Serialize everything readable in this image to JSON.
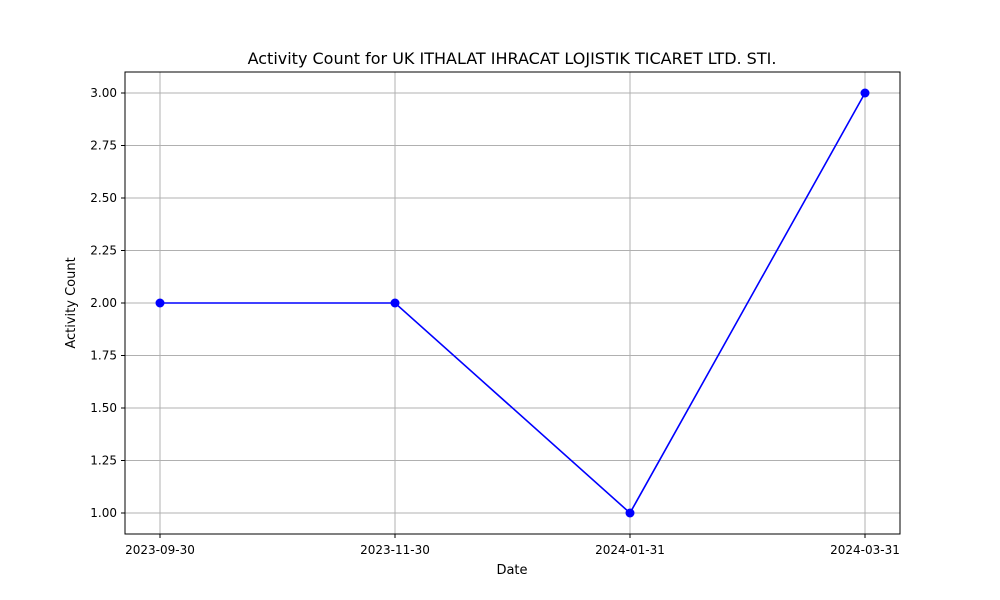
{
  "chart_data": {
    "type": "line",
    "title": "Activity Count for UK ITHALAT IHRACAT LOJISTIK TICARET LTD. STI.",
    "xlabel": "Date",
    "ylabel": "Activity Count",
    "categories": [
      "2023-09-30",
      "2023-11-30",
      "2024-01-31",
      "2024-03-31"
    ],
    "series": [
      {
        "values": [
          2,
          2,
          1,
          3
        ],
        "color": "#0000ff",
        "marker": "circle"
      }
    ],
    "ylim": [
      0.9,
      3.1
    ],
    "yticks": [
      "1.00",
      "1.25",
      "1.50",
      "1.75",
      "2.00",
      "2.25",
      "2.50",
      "2.75",
      "3.00"
    ],
    "grid": true
  }
}
